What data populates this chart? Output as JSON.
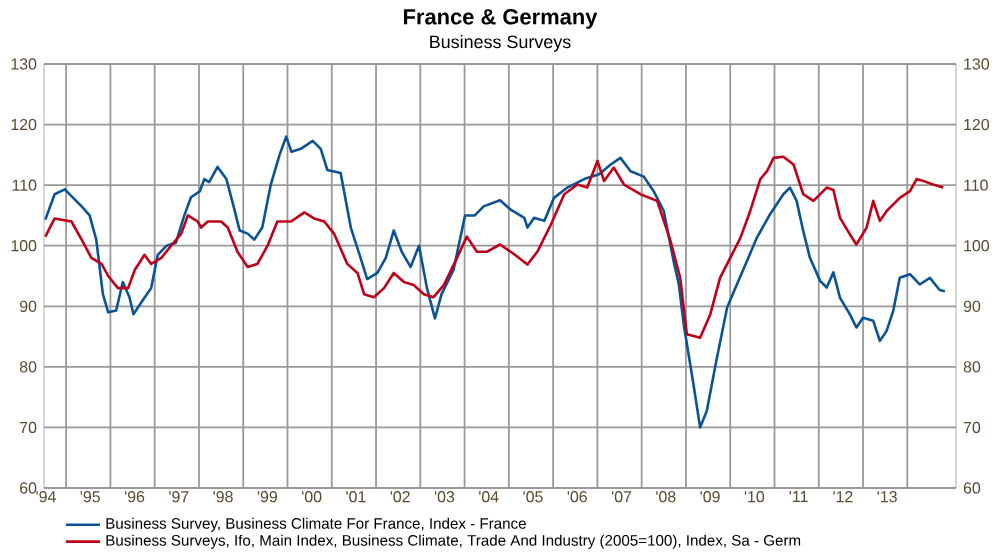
{
  "chart_data": {
    "type": "line",
    "title": "France & Germany",
    "subtitle": "Business Surveys",
    "xlim": [
      1994.0,
      2014.6
    ],
    "xticks": [
      {
        "value": 1994,
        "label": "'94"
      },
      {
        "value": 1995,
        "label": "'95"
      },
      {
        "value": 1996,
        "label": "'96"
      },
      {
        "value": 1997,
        "label": "'97"
      },
      {
        "value": 1998,
        "label": "'98"
      },
      {
        "value": 1999,
        "label": "'99"
      },
      {
        "value": 2000,
        "label": "'00"
      },
      {
        "value": 2001,
        "label": "'01"
      },
      {
        "value": 2002,
        "label": "'02"
      },
      {
        "value": 2003,
        "label": "'03"
      },
      {
        "value": 2004,
        "label": "'04"
      },
      {
        "value": 2005,
        "label": "'05"
      },
      {
        "value": 2006,
        "label": "'06"
      },
      {
        "value": 2007,
        "label": "'07"
      },
      {
        "value": 2008,
        "label": "'08"
      },
      {
        "value": 2009,
        "label": "'09"
      },
      {
        "value": 2010,
        "label": "'10"
      },
      {
        "value": 2011,
        "label": "'11"
      },
      {
        "value": 2012,
        "label": "'12"
      },
      {
        "value": 2013,
        "label": "'13"
      },
      {
        "value": 1994.5,
        "label": null
      },
      {
        "value": 1995.5,
        "label": null
      },
      {
        "value": 1996.5,
        "label": null
      },
      {
        "value": 1997.5,
        "label": null
      },
      {
        "value": 1998.5,
        "label": null
      },
      {
        "value": 1999.5,
        "label": null
      },
      {
        "value": 2000.5,
        "label": null
      },
      {
        "value": 2001.5,
        "label": null
      },
      {
        "value": 2002.5,
        "label": null
      },
      {
        "value": 2003.5,
        "label": null
      },
      {
        "value": 2004.5,
        "label": null
      },
      {
        "value": 2005.5,
        "label": null
      },
      {
        "value": 2006.5,
        "label": null
      },
      {
        "value": 2007.5,
        "label": null
      },
      {
        "value": 2008.5,
        "label": null
      },
      {
        "value": 2009.5,
        "label": null
      },
      {
        "value": 2010.5,
        "label": null
      },
      {
        "value": 2011.5,
        "label": null
      },
      {
        "value": 2012.5,
        "label": null
      },
      {
        "value": 2013.5,
        "label": null
      }
    ],
    "ylim": [
      60,
      130
    ],
    "yticks": [
      60,
      70,
      80,
      90,
      100,
      110,
      120,
      130
    ],
    "y2lim": [
      60,
      130
    ],
    "y2ticks": [
      60,
      70,
      80,
      90,
      100,
      110,
      120,
      130
    ],
    "grid": true,
    "legend": "bottom",
    "line_style": "solid",
    "series": [
      {
        "name": "Business Survey, Business Climate For France, Index - France",
        "color": "#0b5394",
        "x": [
          1994.03,
          1994.24,
          1994.47,
          1994.62,
          1994.85,
          1995.03,
          1995.18,
          1995.33,
          1995.45,
          1995.63,
          1995.78,
          1995.93,
          1996.02,
          1996.23,
          1996.42,
          1996.57,
          1996.77,
          1996.98,
          1997.17,
          1997.32,
          1997.52,
          1997.62,
          1997.73,
          1997.92,
          1998.12,
          1998.3,
          1998.42,
          1998.6,
          1998.75,
          1998.93,
          1999.12,
          1999.32,
          1999.47,
          1999.59,
          1999.8,
          2000.07,
          2000.25,
          2000.4,
          2000.7,
          2000.93,
          2001.15,
          2001.3,
          2001.53,
          2001.72,
          2001.9,
          2002.08,
          2002.28,
          2002.47,
          2002.65,
          2002.83,
          2002.98,
          2003.25,
          2003.51,
          2003.73,
          2003.93,
          2004.3,
          2004.55,
          2004.85,
          2004.92,
          2005.07,
          2005.3,
          2005.52,
          2005.82,
          2006.2,
          2006.54,
          2006.8,
          2007.02,
          2007.25,
          2007.55,
          2007.77,
          2008.0,
          2008.22,
          2008.34,
          2008.45,
          2008.67,
          2008.82,
          2008.97,
          2009.2,
          2009.43,
          2009.65,
          2009.88,
          2010.1,
          2010.4,
          2010.7,
          2010.85,
          2011.0,
          2011.15,
          2011.3,
          2011.53,
          2011.68,
          2011.83,
          2011.98,
          2012.2,
          2012.35,
          2012.5,
          2012.73,
          2012.88,
          2013.03,
          2013.18,
          2013.33,
          2013.56,
          2013.78,
          2014.01,
          2014.23,
          2014.35
        ],
        "values": [
          104.3,
          108.5,
          109.3,
          108.2,
          106.5,
          105,
          101,
          92,
          89,
          89.3,
          94,
          91.5,
          88.7,
          91,
          93,
          98.5,
          100,
          100.5,
          105,
          108,
          109,
          111,
          110.5,
          113,
          111,
          106,
          102.5,
          102,
          101,
          103,
          110,
          115,
          118,
          115.5,
          116,
          117.3,
          116,
          112.5,
          112,
          103,
          98,
          94.5,
          95.5,
          98,
          102.5,
          99,
          96.5,
          100,
          93,
          88,
          92,
          96,
          105,
          105,
          106.5,
          107.5,
          105.9,
          104.6,
          103,
          104.6,
          104.1,
          107.9,
          109.6,
          111,
          111.8,
          113.4,
          114.5,
          112.3,
          111.4,
          109,
          105.7,
          97.5,
          93.6,
          87,
          77.1,
          70,
          72.7,
          81.5,
          89.8,
          93.6,
          97.5,
          101.3,
          105.2,
          108.5,
          109.6,
          107.4,
          102.4,
          98,
          94.2,
          93.1,
          95.6,
          91.4,
          88.7,
          86.5,
          88.1,
          87.6,
          84.3,
          85.9,
          89.2,
          94.7,
          95.3,
          93.6,
          94.7,
          92.7,
          92.5
        ]
      },
      {
        "name": "Business Surveys, Ifo, Main Index, Business Climate, Trade And Industry (2005=100), Index, Sa - Germ",
        "color": "#c00018",
        "x": [
          1994.03,
          1994.24,
          1994.39,
          1994.62,
          1994.85,
          1995.07,
          1995.3,
          1995.45,
          1995.67,
          1995.9,
          1996.05,
          1996.27,
          1996.42,
          1996.65,
          1996.87,
          1997.1,
          1997.25,
          1997.47,
          1997.55,
          1997.7,
          1998.0,
          1998.15,
          1998.37,
          1998.6,
          1998.82,
          1999.05,
          1999.27,
          1999.58,
          1999.88,
          2000.1,
          2000.33,
          2000.55,
          2000.85,
          2001.08,
          2001.23,
          2001.45,
          2001.68,
          2001.9,
          2002.13,
          2002.35,
          2002.58,
          2002.8,
          2003.03,
          2003.33,
          2003.55,
          2003.78,
          2004.0,
          2004.3,
          2004.62,
          2004.92,
          2005.15,
          2005.45,
          2005.75,
          2006.05,
          2006.27,
          2006.5,
          2006.65,
          2006.87,
          2007.1,
          2007.47,
          2007.85,
          2008.15,
          2008.37,
          2008.52,
          2008.82,
          2009.05,
          2009.27,
          2009.5,
          2009.73,
          2009.95,
          2010.18,
          2010.33,
          2010.48,
          2010.7,
          2010.93,
          2011.15,
          2011.38,
          2011.68,
          2011.83,
          2011.98,
          2012.2,
          2012.35,
          2012.58,
          2012.73,
          2012.88,
          2013.03,
          2013.33,
          2013.56,
          2013.71,
          2013.86,
          2014.08,
          2014.31
        ],
        "values": [
          101.5,
          104.5,
          104.3,
          104,
          101,
          98,
          97,
          95,
          93,
          93,
          96,
          98.5,
          97,
          98,
          100,
          102,
          105,
          104,
          103,
          104,
          104,
          103,
          99,
          96.5,
          97,
          100,
          104,
          104,
          105.5,
          104.5,
          104,
          102,
          97,
          95.5,
          92,
          91.5,
          93,
          95.5,
          94,
          93.5,
          92,
          91.5,
          93.5,
          98,
          101.5,
          99,
          99,
          100.2,
          98.6,
          96.9,
          99.1,
          103.5,
          108.5,
          110.1,
          109.6,
          114,
          110.7,
          112.9,
          110.1,
          108.5,
          107.4,
          100.8,
          94.7,
          85.4,
          84.8,
          88.7,
          94.7,
          98,
          101.3,
          105.7,
          111,
          112.3,
          114.5,
          114.7,
          113.4,
          108.5,
          107.4,
          109.6,
          109.2,
          104.6,
          101.9,
          100.2,
          103,
          107.4,
          104.1,
          105.7,
          107.9,
          109,
          111,
          110.7,
          110.1,
          109.6
        ]
      }
    ]
  }
}
